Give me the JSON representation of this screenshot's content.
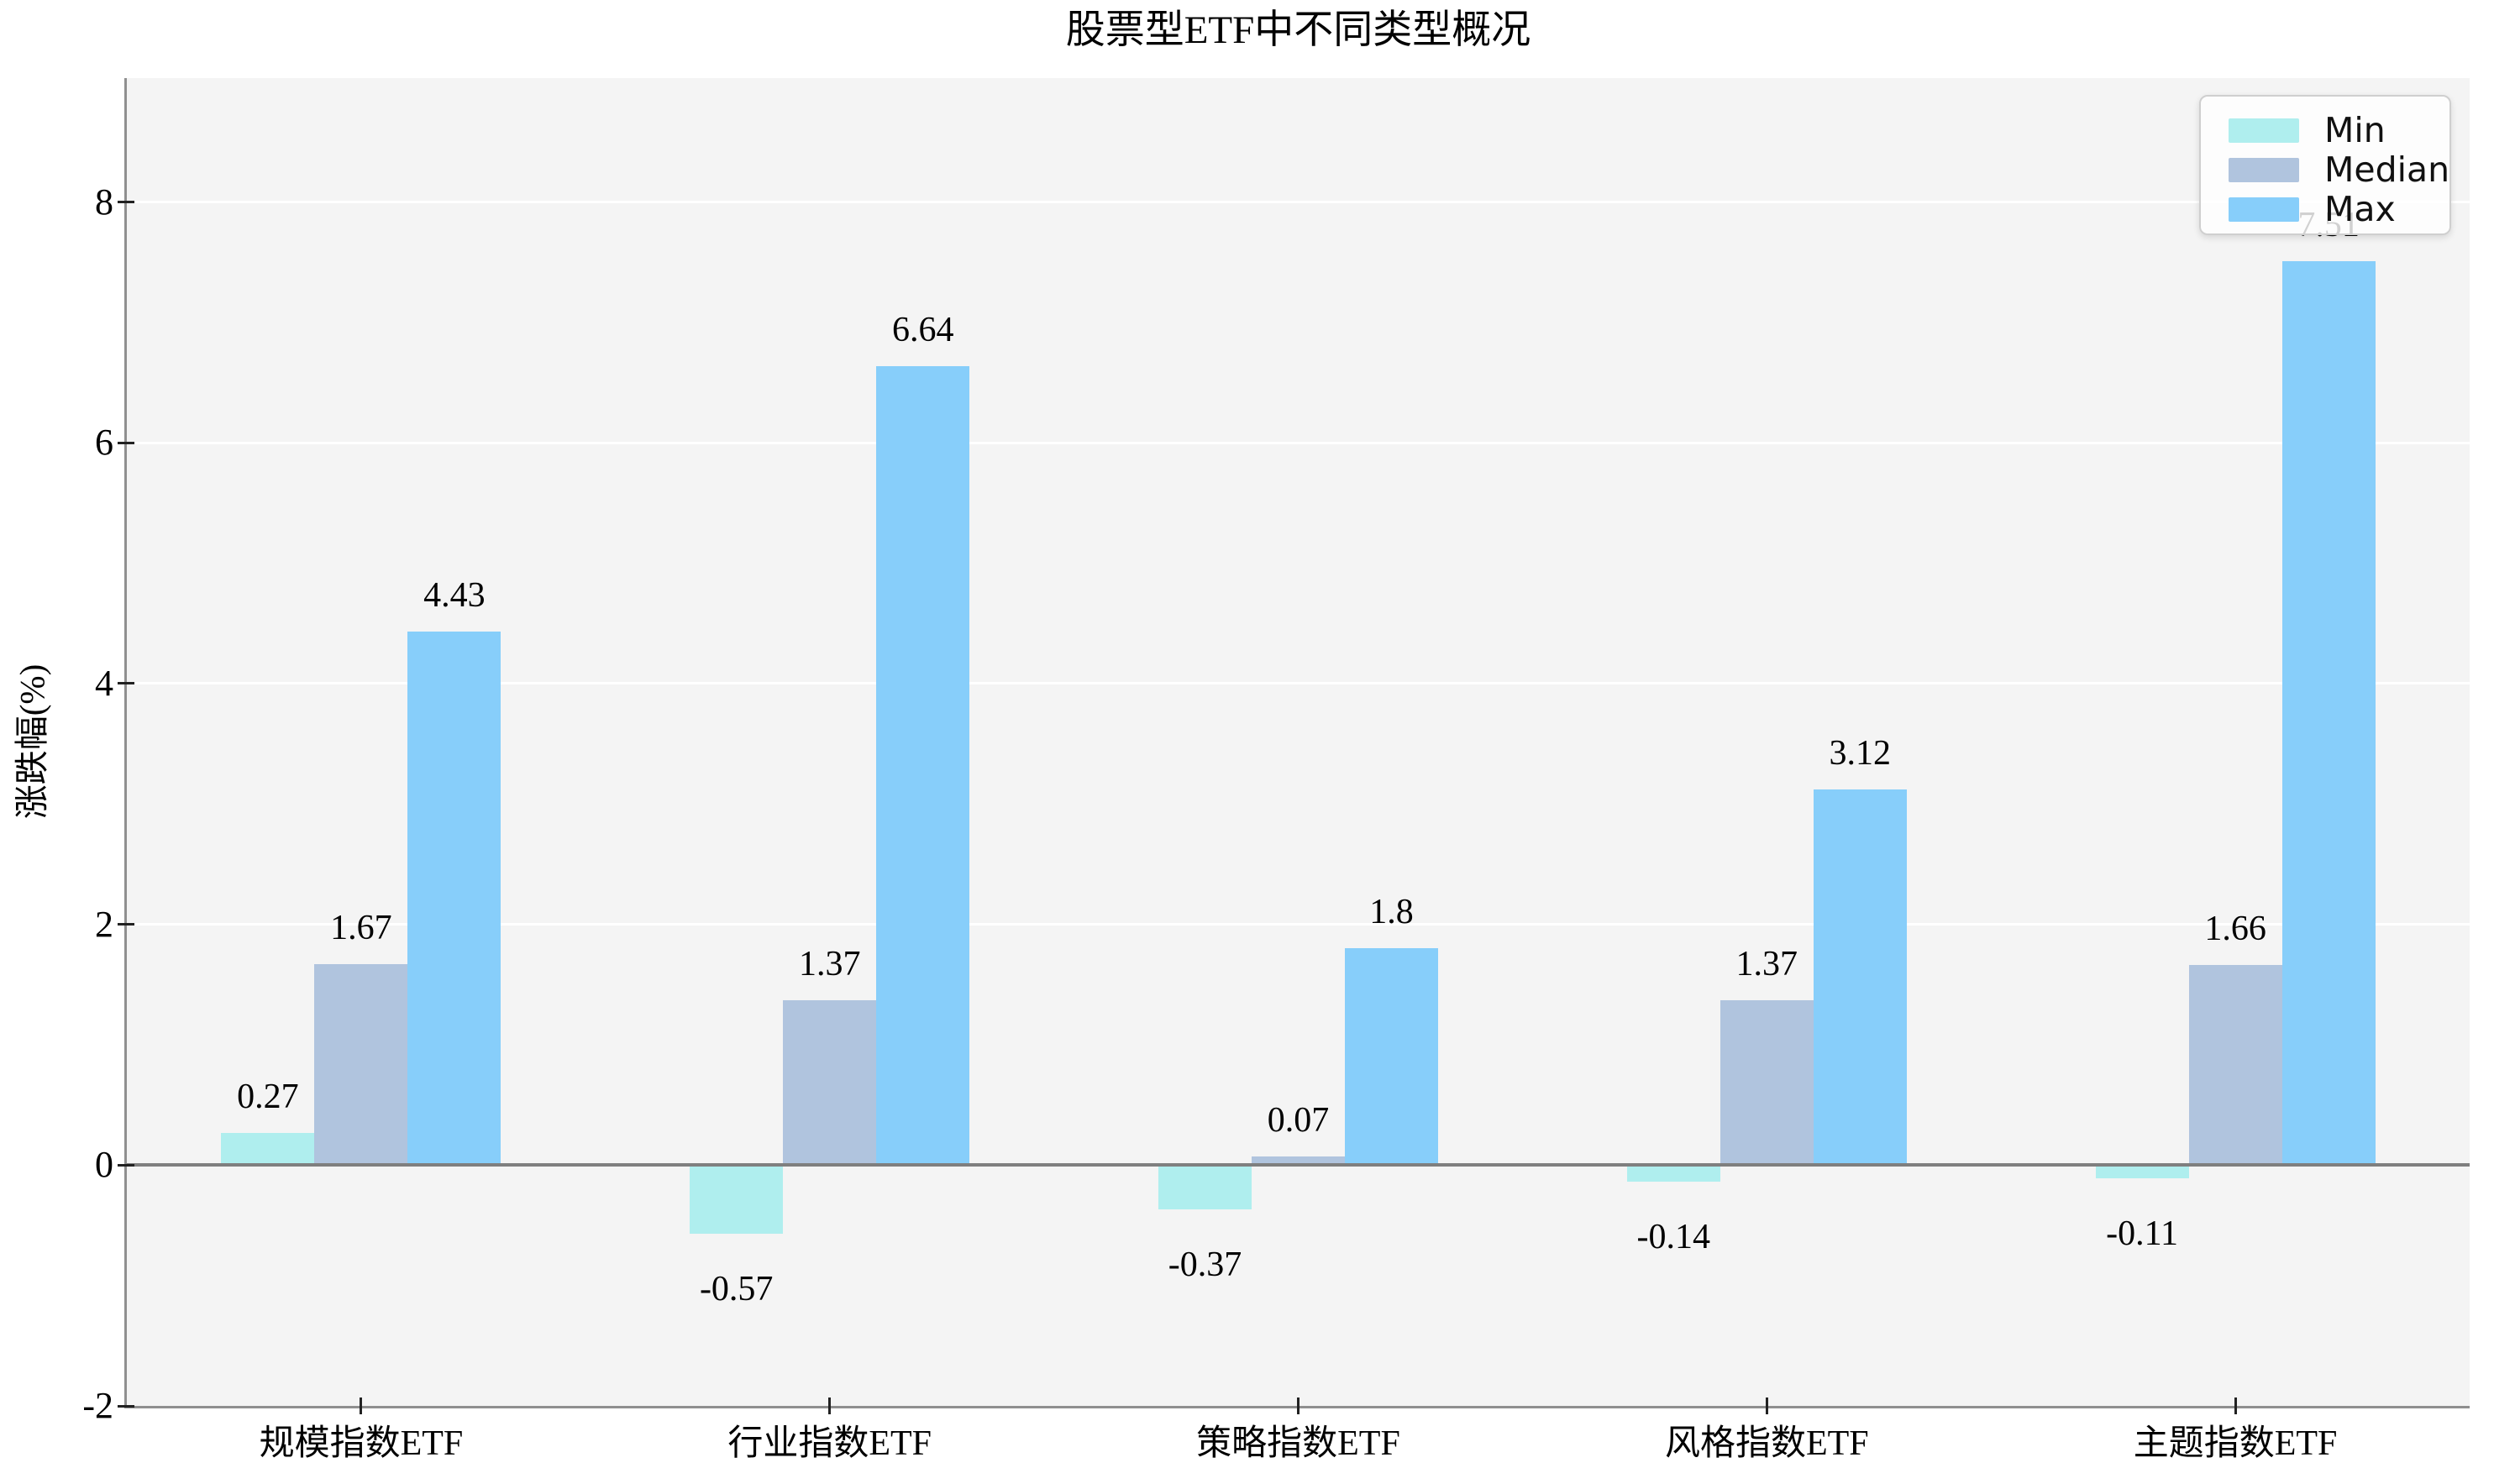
{
  "chart_data": {
    "type": "bar",
    "title": "股票型ETF中不同类型概况",
    "xlabel": "",
    "ylabel": "涨跌幅(%)",
    "categories": [
      "规模指数ETF",
      "行业指数ETF",
      "策略指数ETF",
      "风格指数ETF",
      "主题指数ETF"
    ],
    "series": [
      {
        "name": "Min",
        "color": "#AFEEEE",
        "values": [
          0.27,
          -0.57,
          -0.37,
          -0.14,
          -0.11
        ]
      },
      {
        "name": "Median",
        "color": "#B0C4DE",
        "values": [
          1.67,
          1.37,
          0.07,
          1.37,
          1.66
        ]
      },
      {
        "name": "Max",
        "color": "#87CEFA",
        "values": [
          4.43,
          6.64,
          1.8,
          3.12,
          7.51
        ]
      }
    ],
    "yticks": [
      -2,
      0,
      2,
      4,
      6,
      8
    ],
    "ylim": [
      -2,
      9.03
    ],
    "grid": true,
    "legend_position": "upper right",
    "bar_value_labels_shown": true,
    "note_overlap": "7.51 label partially hidden behind legend",
    "colors": {
      "plot_background": "#f4f4f4",
      "gridline": "#ffffff",
      "zero_line": "#7f7f7f",
      "spine": "#8f8f8f",
      "text": "#000000"
    }
  }
}
